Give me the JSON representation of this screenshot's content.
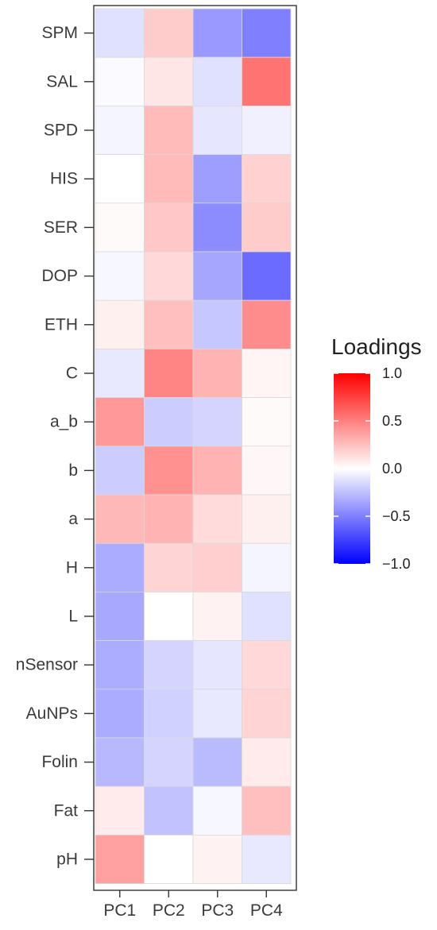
{
  "chart_data": {
    "type": "heatmap",
    "title": "",
    "xlabel": "",
    "ylabel": "",
    "x_categories": [
      "PC1",
      "PC2",
      "PC3",
      "PC4"
    ],
    "y_categories": [
      "SPM",
      "SAL",
      "SPD",
      "HIS",
      "SER",
      "DOP",
      "ETH",
      "C",
      "a_b",
      "b",
      "a",
      "H",
      "L",
      "nSensor",
      "AuNPs",
      "Folin",
      "Fat",
      "pH"
    ],
    "values": [
      [
        -0.12,
        0.2,
        -0.4,
        -0.5
      ],
      [
        -0.02,
        0.1,
        -0.12,
        0.55
      ],
      [
        -0.04,
        0.27,
        -0.1,
        -0.06
      ],
      [
        0.0,
        0.27,
        -0.38,
        0.18
      ],
      [
        0.02,
        0.22,
        -0.45,
        0.2
      ],
      [
        -0.03,
        0.15,
        -0.35,
        -0.58
      ],
      [
        0.06,
        0.25,
        -0.22,
        0.45
      ],
      [
        -0.09,
        0.48,
        0.3,
        0.04
      ],
      [
        0.4,
        -0.2,
        -0.17,
        0.02
      ],
      [
        -0.2,
        0.43,
        0.3,
        0.03
      ],
      [
        0.28,
        0.3,
        0.14,
        0.06
      ],
      [
        -0.33,
        0.17,
        0.19,
        -0.04
      ],
      [
        -0.34,
        0.0,
        0.05,
        -0.12
      ],
      [
        -0.32,
        -0.17,
        -0.1,
        0.15
      ],
      [
        -0.33,
        -0.18,
        -0.09,
        0.17
      ],
      [
        -0.28,
        -0.17,
        -0.27,
        0.08
      ],
      [
        0.08,
        -0.24,
        -0.03,
        0.25
      ],
      [
        0.37,
        0.0,
        0.05,
        -0.09
      ]
    ],
    "colorbar": {
      "title": "Loadings",
      "min": -1.0,
      "max": 1.0,
      "ticks": [
        1.0,
        0.5,
        0.0,
        -0.5,
        -1.0
      ],
      "tick_labels": [
        "1.0",
        "0.5",
        "0.0",
        "−0.5",
        "−1.0"
      ],
      "low_color": "#0000ff",
      "mid_color": "#ffffff",
      "high_color": "#ff0000"
    },
    "grid": false,
    "legend_position": "right"
  }
}
